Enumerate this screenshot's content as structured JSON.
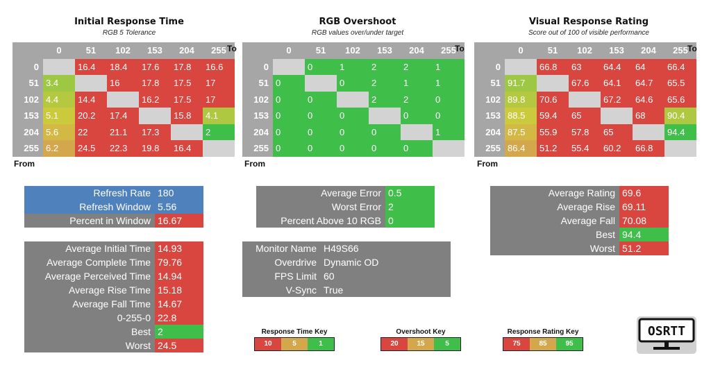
{
  "colors": {
    "red": "#d9453f",
    "green": "#3fbf4a",
    "blue": "#4f81bd",
    "header_gray": "#a6a6a6",
    "panel_gray": "#808080",
    "diag_gray": "#d3d3d3"
  },
  "axes": {
    "to_label": "To",
    "from_label": "From",
    "levels": [
      "0",
      "51",
      "102",
      "153",
      "204",
      "255"
    ]
  },
  "chart_data": [
    {
      "type": "heatmap",
      "title": "Initial Response Time",
      "subtitle": "RGB 5 Tolerance",
      "xlabel": "To",
      "ylabel": "From",
      "x": [
        "0",
        "51",
        "102",
        "153",
        "204",
        "255"
      ],
      "y": [
        "0",
        "51",
        "102",
        "153",
        "204",
        "255"
      ],
      "values": [
        [
          null,
          16.4,
          18.4,
          17.6,
          17.8,
          16.6
        ],
        [
          3.4,
          null,
          16,
          17.8,
          17.5,
          17
        ],
        [
          4.4,
          14.4,
          null,
          16.2,
          17.5,
          17
        ],
        [
          5.1,
          20.2,
          17.4,
          null,
          15.8,
          4.1
        ],
        [
          5.6,
          22,
          21.1,
          17.3,
          null,
          2
        ],
        [
          6.2,
          24.5,
          22.3,
          19.8,
          16.4,
          null
        ]
      ],
      "cell_colors": [
        [
          null,
          "#d9453f",
          "#d9453f",
          "#d9453f",
          "#d9453f",
          "#d9453f"
        ],
        [
          "#9ec743",
          null,
          "#d9453f",
          "#d9453f",
          "#d9453f",
          "#d9453f"
        ],
        [
          "#b5c940",
          "#d9453f",
          null,
          "#d9453f",
          "#d9453f",
          "#d9453f"
        ],
        [
          "#cbca3d",
          "#d9453f",
          "#d9453f",
          null,
          "#d9453f",
          "#aec841"
        ],
        [
          "#d4b845",
          "#d9453f",
          "#d9453f",
          "#d9453f",
          null,
          "#3fbf4a"
        ],
        [
          "#d3a84c",
          "#d9453f",
          "#d9453f",
          "#d9453f",
          "#d9453f",
          null
        ]
      ]
    },
    {
      "type": "heatmap",
      "title": "RGB Overshoot",
      "subtitle": "RGB values over/under target",
      "xlabel": "To",
      "ylabel": "From",
      "x": [
        "0",
        "51",
        "102",
        "153",
        "204",
        "255"
      ],
      "y": [
        "0",
        "51",
        "102",
        "153",
        "204",
        "255"
      ],
      "values": [
        [
          null,
          0,
          1,
          2,
          2,
          1
        ],
        [
          0,
          null,
          0,
          2,
          1,
          1
        ],
        [
          0,
          0,
          null,
          2,
          2,
          0
        ],
        [
          0,
          0,
          0,
          null,
          0,
          0
        ],
        [
          0,
          0,
          0,
          0,
          null,
          1
        ],
        [
          0,
          0,
          0,
          0,
          0,
          null
        ]
      ],
      "cell_colors": [
        [
          null,
          "#3fbf4a",
          "#3fbf4a",
          "#3fbf4a",
          "#3fbf4a",
          "#3fbf4a"
        ],
        [
          "#3fbf4a",
          null,
          "#3fbf4a",
          "#3fbf4a",
          "#3fbf4a",
          "#3fbf4a"
        ],
        [
          "#3fbf4a",
          "#3fbf4a",
          null,
          "#3fbf4a",
          "#3fbf4a",
          "#3fbf4a"
        ],
        [
          "#3fbf4a",
          "#3fbf4a",
          "#3fbf4a",
          null,
          "#3fbf4a",
          "#3fbf4a"
        ],
        [
          "#3fbf4a",
          "#3fbf4a",
          "#3fbf4a",
          "#3fbf4a",
          null,
          "#3fbf4a"
        ],
        [
          "#3fbf4a",
          "#3fbf4a",
          "#3fbf4a",
          "#3fbf4a",
          "#3fbf4a",
          null
        ]
      ]
    },
    {
      "type": "heatmap",
      "title": "Visual Response Rating",
      "subtitle": "Score out of 100 of visible performance",
      "xlabel": "To",
      "ylabel": "From",
      "x": [
        "0",
        "51",
        "102",
        "153",
        "204",
        "255"
      ],
      "y": [
        "0",
        "51",
        "102",
        "153",
        "204",
        "255"
      ],
      "values": [
        [
          null,
          66.8,
          63,
          64.4,
          64,
          66.4
        ],
        [
          91.7,
          null,
          67.6,
          64.1,
          64.7,
          65.5
        ],
        [
          89.8,
          70.6,
          null,
          67.2,
          64.6,
          65.6
        ],
        [
          88.5,
          59.4,
          65,
          null,
          68,
          90.4
        ],
        [
          87.5,
          55.9,
          57.8,
          65,
          null,
          94.4
        ],
        [
          86.4,
          51.2,
          55.4,
          60.2,
          66.8,
          null
        ]
      ],
      "cell_colors": [
        [
          null,
          "#d9453f",
          "#d9453f",
          "#d9453f",
          "#d9453f",
          "#d9453f"
        ],
        [
          "#9ec743",
          null,
          "#d9453f",
          "#d9453f",
          "#d9453f",
          "#d9453f"
        ],
        [
          "#b5c940",
          "#d9453f",
          null,
          "#d9453f",
          "#d9453f",
          "#d9453f"
        ],
        [
          "#cbca3d",
          "#d9453f",
          "#d9453f",
          null,
          "#d9453f",
          "#aec841"
        ],
        [
          "#d4b845",
          "#d9453f",
          "#d9453f",
          "#d9453f",
          null,
          "#3fbf4a"
        ],
        [
          "#d3a84c",
          "#d9453f",
          "#d9453f",
          "#d9453f",
          "#d9453f",
          null
        ]
      ]
    }
  ],
  "refresh_table": [
    {
      "label": "Refresh Rate",
      "value": "180",
      "label_color": "#4f81bd",
      "value_color": "#4f81bd"
    },
    {
      "label": "Refresh Window",
      "value": "5.56",
      "label_color": "#4f81bd",
      "value_color": "#4f81bd"
    },
    {
      "label": "Percent in Window",
      "value": "16.67",
      "label_color": "#808080",
      "value_color": "#d9453f"
    }
  ],
  "response_table": [
    {
      "label": "Average Initial Time",
      "value": "14.93",
      "value_color": "#d9453f"
    },
    {
      "label": "Average Complete Time",
      "value": "79.76",
      "value_color": "#d9453f"
    },
    {
      "label": "Average Perceived Time",
      "value": "14.94",
      "value_color": "#d9453f"
    },
    {
      "label": "Average Rise Time",
      "value": "15.18",
      "value_color": "#d9453f"
    },
    {
      "label": "Average Fall Time",
      "value": "14.67",
      "value_color": "#d9453f"
    },
    {
      "label": "0-255-0",
      "value": "22.8",
      "value_color": "#d9453f"
    },
    {
      "label": "Best",
      "value": "2",
      "value_color": "#3fbf4a"
    },
    {
      "label": "Worst",
      "value": "24.5",
      "value_color": "#d9453f"
    }
  ],
  "overshoot_table": [
    {
      "label": "Average Error",
      "value": "0.5",
      "value_color": "#3fbf4a"
    },
    {
      "label": "Worst Error",
      "value": "2",
      "value_color": "#3fbf4a"
    },
    {
      "label": "Percent Above 10 RGB",
      "value": "0",
      "value_color": "#3fbf4a"
    }
  ],
  "monitor_table": [
    {
      "label": "Monitor Name",
      "value": "H49S66"
    },
    {
      "label": "Overdrive",
      "value": "Dynamic OD"
    },
    {
      "label": "FPS Limit",
      "value": "60"
    },
    {
      "label": "V-Sync",
      "value": "True"
    }
  ],
  "rating_table": [
    {
      "label": "Average Rating",
      "value": "69.6",
      "value_color": "#d9453f"
    },
    {
      "label": "Average Rise",
      "value": "69.11",
      "value_color": "#d9453f"
    },
    {
      "label": "Average Fall",
      "value": "70.08",
      "value_color": "#d9453f"
    },
    {
      "label": "Best",
      "value": "94.4",
      "value_color": "#3fbf4a"
    },
    {
      "label": "Worst",
      "value": "51.2",
      "value_color": "#d9453f"
    }
  ],
  "keys": [
    {
      "title": "Response Time Key",
      "items": [
        {
          "text": "10",
          "color": "#d9453f"
        },
        {
          "text": "5",
          "color": "#d3a84c"
        },
        {
          "text": "1",
          "color": "#3fbf4a"
        }
      ]
    },
    {
      "title": "Overshoot Key",
      "items": [
        {
          "text": "20",
          "color": "#d9453f"
        },
        {
          "text": "15",
          "color": "#d3a84c"
        },
        {
          "text": "5",
          "color": "#3fbf4a"
        }
      ]
    },
    {
      "title": "Response Rating Key",
      "items": [
        {
          "text": "75",
          "color": "#d9453f"
        },
        {
          "text": "85",
          "color": "#d3a84c"
        },
        {
          "text": "95",
          "color": "#3fbf4a"
        }
      ]
    }
  ],
  "logo": {
    "text": "OSRTT",
    "icon": "monitor-logo-icon"
  }
}
